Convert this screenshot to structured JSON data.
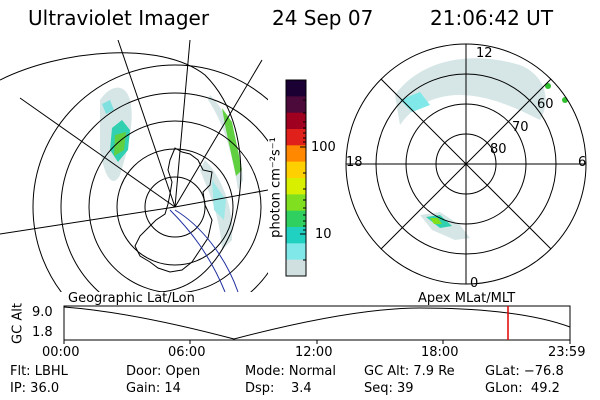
{
  "header": {
    "instrument": "Ultraviolet Imager",
    "date": "24 Sep 07",
    "time": "21:06:42 UT"
  },
  "left_panel": {
    "label": "Geographic Lat/Lon"
  },
  "right_panel": {
    "label": "Apex MLat/MLT",
    "mlt_labels": {
      "top": "12",
      "left": "18",
      "right": "6",
      "bottom": "0"
    },
    "lat_labels": [
      "60",
      "70",
      "80"
    ]
  },
  "colorbar": {
    "unit_label": "photon cm⁻²s⁻¹",
    "ticks": [
      "100",
      "10"
    ],
    "colors": [
      "#1a0033",
      "#4b0a3a",
      "#a00020",
      "#e0201a",
      "#ff8800",
      "#ffd000",
      "#d8f000",
      "#80e020",
      "#30d060",
      "#20d0c0",
      "#80e8e8",
      "#d0e0e0"
    ]
  },
  "altitude_plot": {
    "ylabel": "GC Alt",
    "yticks": [
      "9.0",
      "1.8"
    ],
    "xticks": [
      "00:00",
      "06:00",
      "12:00",
      "18:00",
      "23:59"
    ],
    "marker_color": "#e00000"
  },
  "footer": {
    "row1": {
      "flt": "Flt: LBHL",
      "door": "Door: Open",
      "mode": "Mode: Normal",
      "gcalt": "GC Alt: 7.9 Re",
      "glat": "GLat: −76.8"
    },
    "row2": {
      "ip": "IP: 36.0",
      "gain": "Gain: 14",
      "dsp": "Dsp:    3.4",
      "seq": "Seq: 39",
      "glon": "GLon:  49.2"
    }
  }
}
